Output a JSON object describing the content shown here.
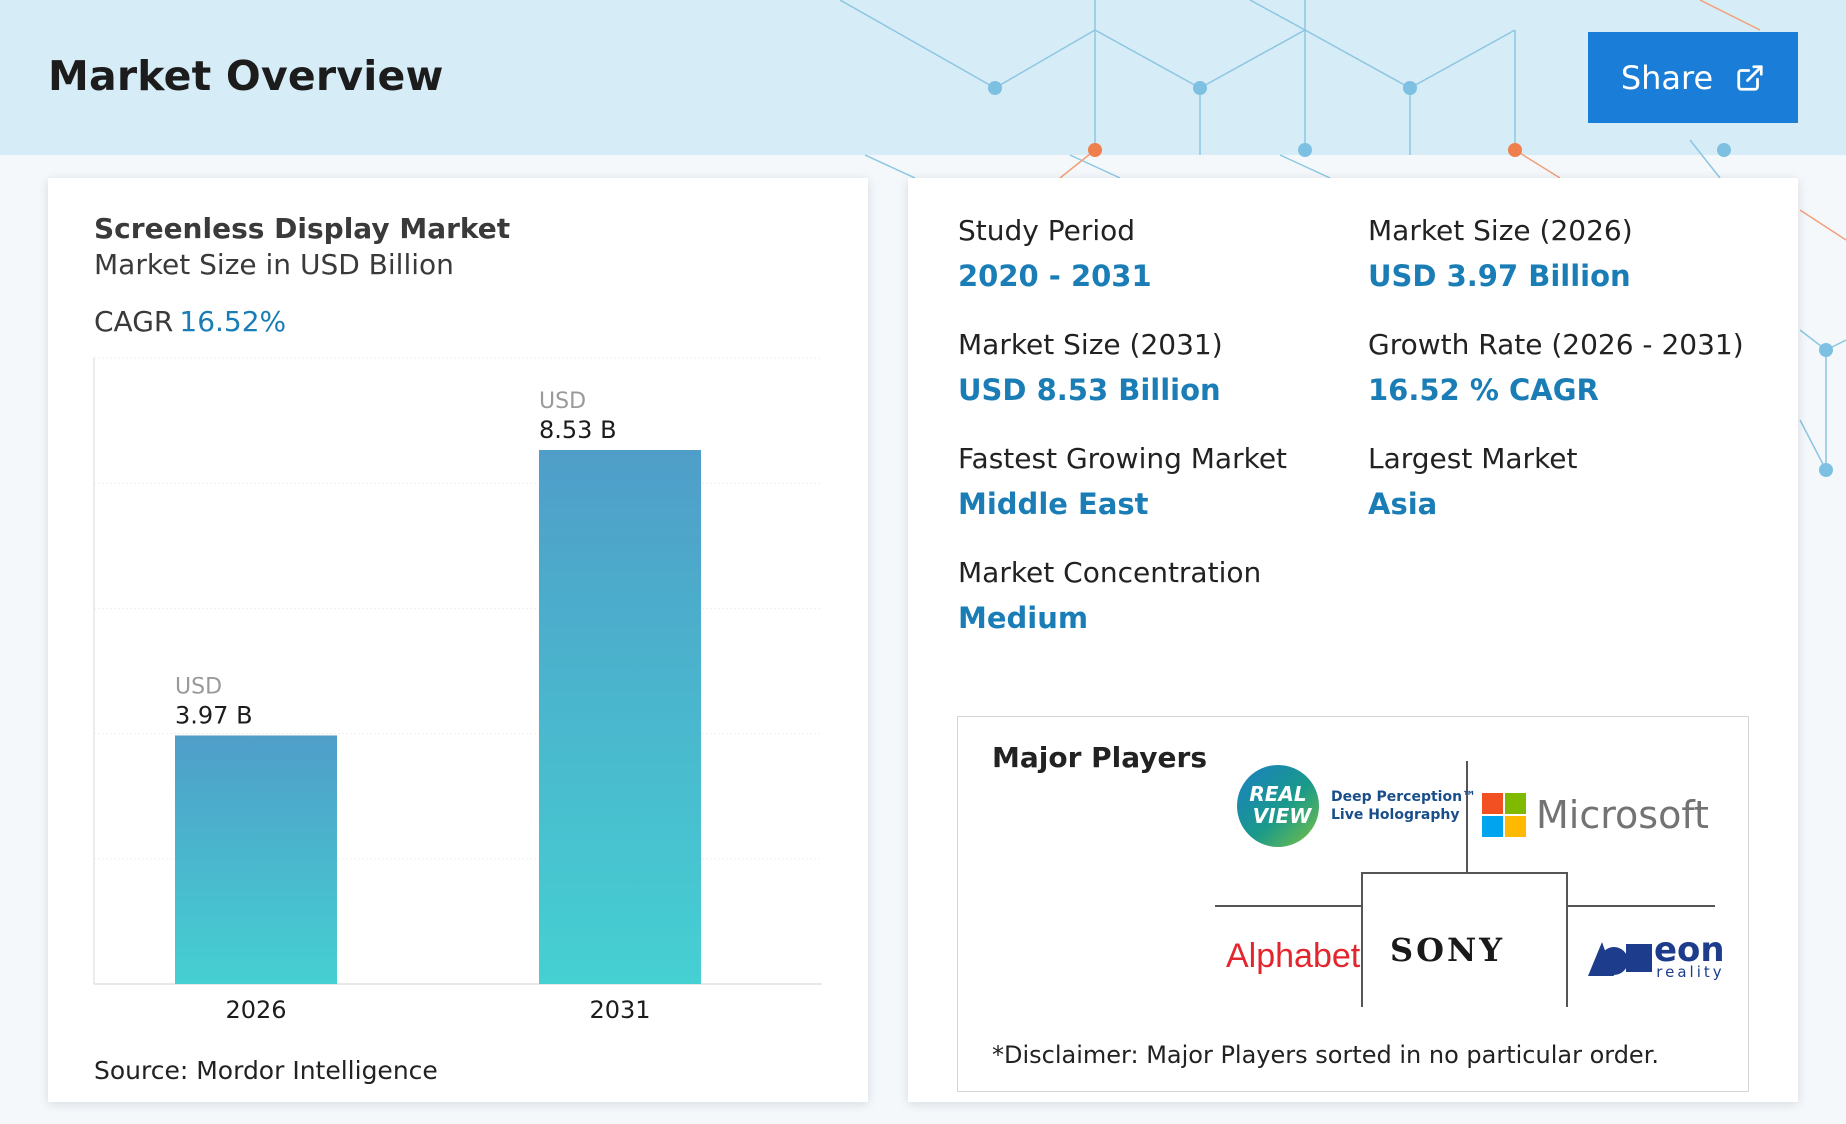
{
  "header": {
    "title": "Market Overview",
    "share_label": "Share"
  },
  "chart_card": {
    "title": "Screenless Display Market",
    "subtitle": "Market Size in USD Billion",
    "cagr_label": "CAGR",
    "cagr_value": "16.52%",
    "source": "Source: Mordor Intelligence"
  },
  "chart_data": {
    "type": "bar",
    "categories": [
      "2026",
      "2031"
    ],
    "values": [
      3.97,
      8.53
    ],
    "value_prefix": "USD",
    "value_labels": [
      "3.97 B",
      "8.53 B"
    ],
    "title": "Screenless Display Market",
    "subtitle": "Market Size in USD Billion",
    "ylim": [
      0,
      10
    ],
    "grid": true,
    "colors": {
      "bar_top": "#4f9ec9",
      "bar_bottom": "#45d0d2"
    }
  },
  "stats": [
    {
      "label": "Study Period",
      "value": "2020 - 2031"
    },
    {
      "label": "Market Size (2026)",
      "value": "USD 3.97 Billion"
    },
    {
      "label": "Market Size (2031)",
      "value": "USD 8.53 Billion"
    },
    {
      "label": "Growth Rate (2026 - 2031)",
      "value": "16.52 % CAGR"
    },
    {
      "label": "Fastest Growing Market",
      "value": "Middle East"
    },
    {
      "label": "Largest Market",
      "value": "Asia"
    },
    {
      "label": "Market Concentration",
      "value": "Medium"
    }
  ],
  "players": {
    "title": "Major Players",
    "realview": {
      "badge_line1": "REAL",
      "badge_line2": "VIEW",
      "tag_line1": "Deep Perception™",
      "tag_line2": "Live Holography"
    },
    "microsoft": "Microsoft",
    "alphabet": "Alphabet",
    "sony": "SONY",
    "eon": {
      "name": "eon",
      "sub": "reality"
    },
    "disclaimer": "*Disclaimer: Major Players sorted in no particular order."
  },
  "colors": {
    "accent": "#1a7db5",
    "share_button": "#1a7dd8",
    "header_bg": "#d6ecf6"
  }
}
